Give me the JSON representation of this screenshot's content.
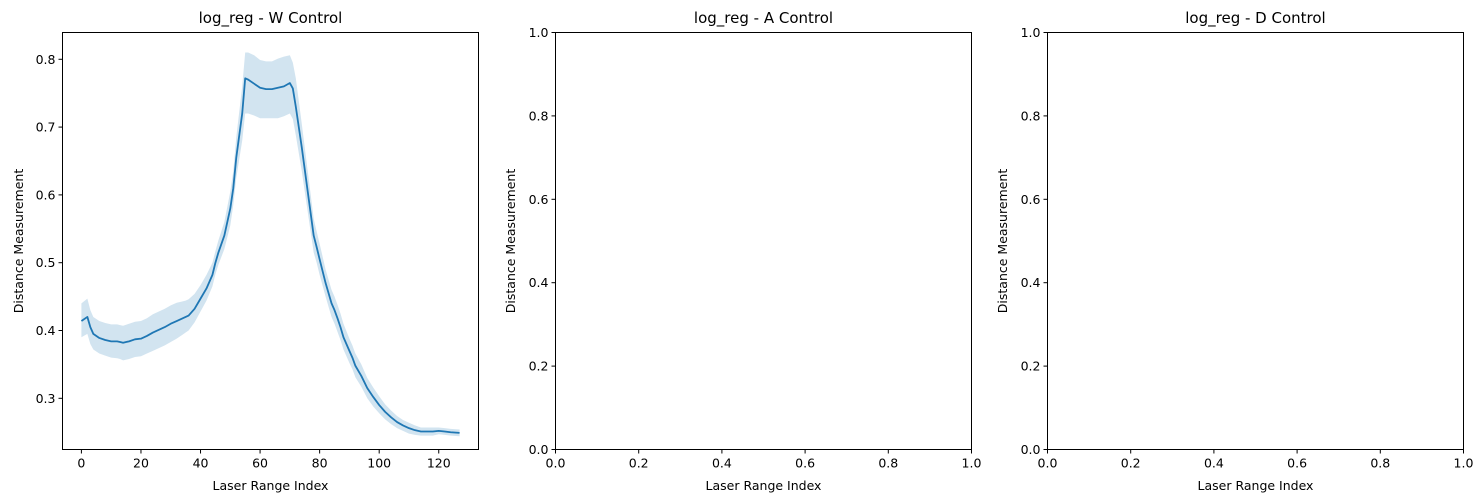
{
  "chart_data": [
    {
      "type": "line",
      "title": "log_reg - W Control",
      "xlabel": "Laser Range Index",
      "ylabel": "Distance Measurement",
      "xlim": [
        -6.35,
        133.35
      ],
      "ylim": [
        0.2245,
        0.8395
      ],
      "xticks": [
        0,
        20,
        40,
        60,
        80,
        100,
        120
      ],
      "yticks": [
        0.3,
        0.4,
        0.5,
        0.6,
        0.7,
        0.8
      ],
      "xtick_labels": [
        "0",
        "20",
        "40",
        "60",
        "80",
        "100",
        "120"
      ],
      "ytick_labels": [
        "0.3",
        "0.4",
        "0.5",
        "0.6",
        "0.7",
        "0.8"
      ],
      "grid": false,
      "line_color": "#1f77b4",
      "band_color": "#1f77b4",
      "series": [
        {
          "x": [
            0,
            2,
            3,
            4,
            6,
            8,
            10,
            12,
            13,
            14,
            16,
            18,
            20,
            22,
            24,
            26,
            28,
            30,
            32,
            34,
            35,
            36,
            38,
            40,
            42,
            44,
            45,
            46,
            48,
            50,
            51,
            52,
            54,
            55,
            56,
            58,
            60,
            62,
            64,
            66,
            68,
            70,
            71,
            72,
            74,
            76,
            78,
            79,
            80,
            82,
            84,
            85,
            86,
            87,
            88,
            90,
            91,
            92,
            94,
            96,
            98,
            100,
            102,
            104,
            106,
            108,
            110,
            112,
            114,
            116,
            118,
            120,
            122,
            124,
            127
          ],
          "y": [
            0.414,
            0.42,
            0.405,
            0.395,
            0.389,
            0.386,
            0.384,
            0.384,
            0.383,
            0.382,
            0.384,
            0.387,
            0.388,
            0.392,
            0.397,
            0.401,
            0.405,
            0.41,
            0.414,
            0.418,
            0.42,
            0.422,
            0.432,
            0.447,
            0.462,
            0.482,
            0.5,
            0.515,
            0.54,
            0.58,
            0.61,
            0.655,
            0.72,
            0.772,
            0.77,
            0.764,
            0.758,
            0.756,
            0.756,
            0.758,
            0.76,
            0.765,
            0.757,
            0.73,
            0.67,
            0.605,
            0.54,
            0.523,
            0.505,
            0.47,
            0.44,
            0.43,
            0.418,
            0.405,
            0.39,
            0.37,
            0.36,
            0.348,
            0.333,
            0.315,
            0.302,
            0.29,
            0.28,
            0.272,
            0.265,
            0.26,
            0.256,
            0.253,
            0.251,
            0.251,
            0.251,
            0.252,
            0.251,
            0.25,
            0.249
          ],
          "ci_low": [
            0.39,
            0.395,
            0.38,
            0.372,
            0.366,
            0.363,
            0.36,
            0.359,
            0.358,
            0.356,
            0.358,
            0.361,
            0.362,
            0.366,
            0.37,
            0.374,
            0.378,
            0.383,
            0.388,
            0.394,
            0.397,
            0.4,
            0.412,
            0.428,
            0.444,
            0.465,
            0.483,
            0.497,
            0.52,
            0.555,
            0.585,
            0.625,
            0.68,
            0.72,
            0.72,
            0.717,
            0.713,
            0.713,
            0.713,
            0.713,
            0.716,
            0.72,
            0.712,
            0.688,
            0.635,
            0.575,
            0.515,
            0.5,
            0.482,
            0.45,
            0.42,
            0.41,
            0.398,
            0.386,
            0.372,
            0.352,
            0.343,
            0.331,
            0.317,
            0.3,
            0.288,
            0.278,
            0.269,
            0.262,
            0.256,
            0.252,
            0.248,
            0.246,
            0.245,
            0.245,
            0.245,
            0.247,
            0.246,
            0.245,
            0.244
          ],
          "ci_high": [
            0.44,
            0.447,
            0.43,
            0.42,
            0.414,
            0.411,
            0.409,
            0.409,
            0.408,
            0.407,
            0.41,
            0.413,
            0.414,
            0.418,
            0.424,
            0.428,
            0.432,
            0.437,
            0.441,
            0.443,
            0.444,
            0.446,
            0.454,
            0.467,
            0.482,
            0.5,
            0.517,
            0.533,
            0.56,
            0.605,
            0.635,
            0.685,
            0.76,
            0.81,
            0.81,
            0.806,
            0.799,
            0.797,
            0.797,
            0.801,
            0.804,
            0.806,
            0.795,
            0.772,
            0.705,
            0.635,
            0.565,
            0.546,
            0.528,
            0.49,
            0.46,
            0.45,
            0.438,
            0.425,
            0.41,
            0.388,
            0.378,
            0.366,
            0.35,
            0.33,
            0.316,
            0.303,
            0.291,
            0.282,
            0.274,
            0.268,
            0.264,
            0.26,
            0.257,
            0.257,
            0.257,
            0.257,
            0.256,
            0.255,
            0.254
          ]
        }
      ]
    },
    {
      "type": "line",
      "title": "log_reg - A Control",
      "xlabel": "Laser Range Index",
      "ylabel": "Distance Measurement",
      "xlim": [
        0,
        1
      ],
      "ylim": [
        0,
        1
      ],
      "xticks": [
        0,
        0.2,
        0.4,
        0.6,
        0.8,
        1
      ],
      "yticks": [
        0,
        0.2,
        0.4,
        0.6,
        0.8,
        1
      ],
      "xtick_labels": [
        "0.0",
        "0.2",
        "0.4",
        "0.6",
        "0.8",
        "1.0"
      ],
      "ytick_labels": [
        "0.0",
        "0.2",
        "0.4",
        "0.6",
        "0.8",
        "1.0"
      ],
      "grid": false,
      "series": []
    },
    {
      "type": "line",
      "title": "log_reg - D Control",
      "xlabel": "Laser Range Index",
      "ylabel": "Distance Measurement",
      "xlim": [
        0,
        1
      ],
      "ylim": [
        0,
        1
      ],
      "xticks": [
        0,
        0.2,
        0.4,
        0.6,
        0.8,
        1
      ],
      "yticks": [
        0,
        0.2,
        0.4,
        0.6,
        0.8,
        1
      ],
      "xtick_labels": [
        "0.0",
        "0.2",
        "0.4",
        "0.6",
        "0.8",
        "1.0"
      ],
      "ytick_labels": [
        "0.0",
        "0.2",
        "0.4",
        "0.6",
        "0.8",
        "1.0"
      ],
      "grid": false,
      "series": []
    }
  ]
}
